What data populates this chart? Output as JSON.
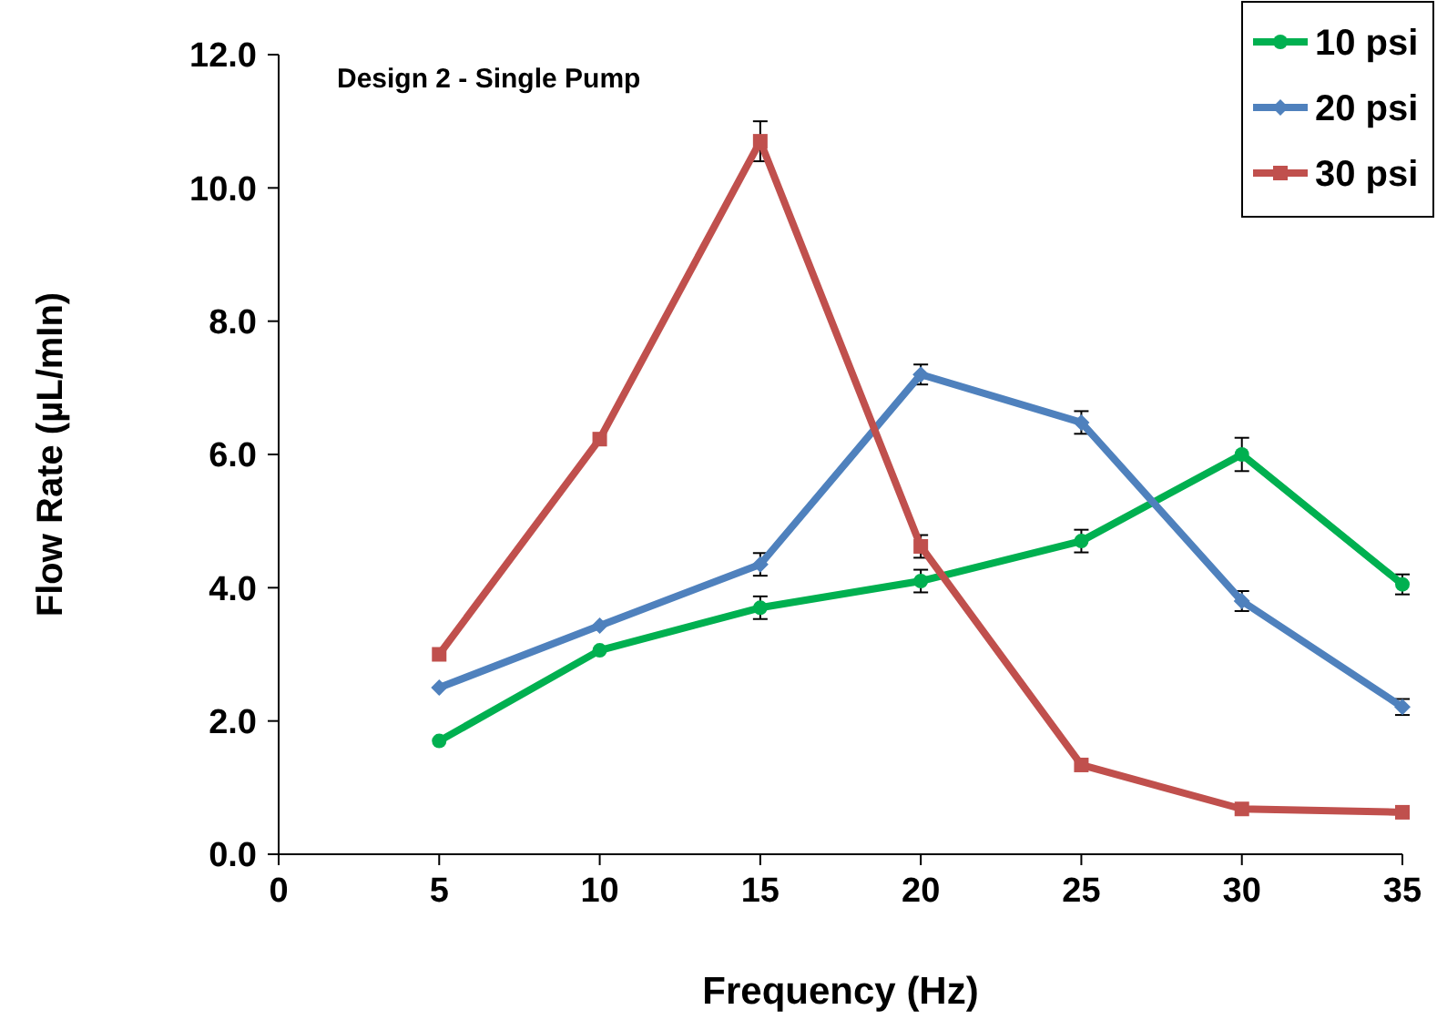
{
  "chart_data": {
    "type": "line",
    "title": "Design 2 -  Single Pump",
    "xlabel": "Frequency (Hz)",
    "ylabel": "Flow Rate (µL/mIn)",
    "x": [
      5,
      10,
      15,
      20,
      25,
      30,
      35
    ],
    "xlim": [
      0,
      35
    ],
    "xticks": [
      0,
      5,
      10,
      15,
      20,
      25,
      30,
      35
    ],
    "ylim": [
      0,
      12
    ],
    "yticks": [
      {
        "value": 0,
        "label": "0.0"
      },
      {
        "value": 2,
        "label": "2.0"
      },
      {
        "value": 4,
        "label": "4.0"
      },
      {
        "value": 6,
        "label": "6.0"
      },
      {
        "value": 8,
        "label": "8.0"
      },
      {
        "value": 10,
        "label": "10.0"
      },
      {
        "value": 12,
        "label": "12.0"
      }
    ],
    "grid": false,
    "legend": "top right",
    "series": [
      {
        "name": "10 psi",
        "color": "#00b050",
        "marker": "circle",
        "values": [
          1.7,
          3.06,
          3.7,
          4.1,
          4.7,
          6.0,
          4.05
        ],
        "errors": [
          null,
          null,
          0.17,
          0.17,
          0.17,
          0.25,
          0.15
        ]
      },
      {
        "name": "20 psi",
        "color": "#4f81bd",
        "marker": "diamond",
        "values": [
          2.5,
          3.43,
          4.35,
          7.2,
          6.48,
          3.8,
          2.21
        ],
        "errors": [
          null,
          null,
          0.17,
          0.15,
          0.17,
          0.15,
          0.12
        ]
      },
      {
        "name": "30 psi",
        "color": "#c0504d",
        "marker": "square",
        "values": [
          3.0,
          6.23,
          10.7,
          4.62,
          1.34,
          0.68,
          0.63
        ],
        "errors": [
          null,
          null,
          0.3,
          0.17,
          null,
          null,
          null
        ]
      }
    ]
  }
}
